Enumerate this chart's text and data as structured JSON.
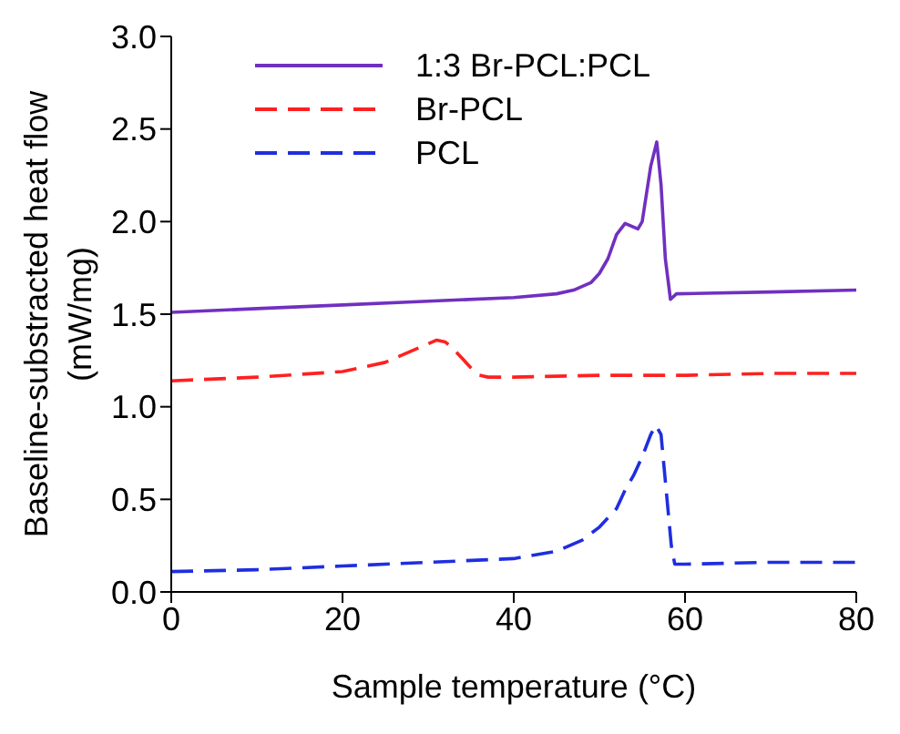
{
  "chart_data": {
    "type": "line",
    "xlabel": "Sample temperature (°C)",
    "ylabel": "Baseline-substracted heat flow (mW/mg)",
    "xlim": [
      0,
      80
    ],
    "xticks": [
      0,
      20,
      40,
      60,
      80
    ],
    "ylim": [
      0,
      3
    ],
    "yticks": [
      {
        "value": 0,
        "label": "0.0"
      },
      0.5,
      {
        "value": 1,
        "label": "1.0"
      },
      1.5,
      {
        "value": 2,
        "label": "2.0"
      },
      2.5,
      {
        "value": 3,
        "label": "3.0"
      }
    ],
    "grid": false,
    "legend": "top left",
    "marker": "none",
    "series": [
      {
        "name": "1:3 Br-PCL:PCL",
        "color": "#7030c0",
        "line_style": "solid",
        "x": [
          0,
          10,
          20,
          30,
          40,
          45,
          47,
          49,
          50,
          51,
          52,
          53,
          54,
          54.5,
          55,
          56,
          56.7,
          57.2,
          57.7,
          58.3,
          59,
          70,
          80
        ],
        "values": [
          1.51,
          1.53,
          1.55,
          1.57,
          1.59,
          1.61,
          1.63,
          1.67,
          1.72,
          1.8,
          1.93,
          1.99,
          1.97,
          1.96,
          2.0,
          2.3,
          2.43,
          2.2,
          1.8,
          1.58,
          1.61,
          1.62,
          1.63
        ]
      },
      {
        "name": "Br-PCL",
        "color": "#ff2020",
        "line_style": "dashed",
        "x": [
          0,
          10,
          20,
          25,
          28,
          30,
          31,
          32,
          33,
          34,
          35,
          36,
          37,
          40,
          50,
          60,
          70,
          80
        ],
        "values": [
          1.14,
          1.16,
          1.19,
          1.24,
          1.3,
          1.34,
          1.36,
          1.35,
          1.31,
          1.26,
          1.21,
          1.17,
          1.16,
          1.16,
          1.17,
          1.17,
          1.18,
          1.18
        ]
      },
      {
        "name": "PCL",
        "color": "#1f2ee0",
        "line_style": "dashed",
        "x": [
          0,
          10,
          20,
          30,
          40,
          45,
          48,
          50,
          52,
          53,
          54,
          55,
          56,
          56.6,
          57.2,
          57.8,
          58.4,
          58.8,
          60,
          70,
          80
        ],
        "values": [
          0.11,
          0.12,
          0.14,
          0.16,
          0.18,
          0.22,
          0.28,
          0.35,
          0.45,
          0.55,
          0.63,
          0.73,
          0.85,
          0.9,
          0.85,
          0.55,
          0.25,
          0.15,
          0.15,
          0.16,
          0.16
        ]
      }
    ]
  }
}
